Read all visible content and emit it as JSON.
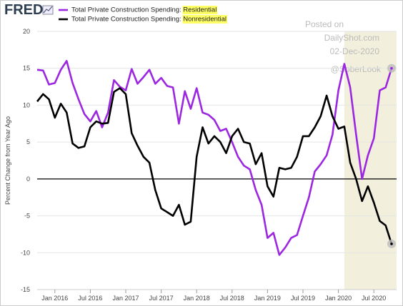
{
  "logo": "FRED",
  "watermark": [
    "Posted on",
    "DailyShot.com",
    "02-Dec-2020",
    "@SoberLook"
  ],
  "chart_data": {
    "type": "line",
    "y_label": "Percent Change from Year Ago",
    "x": [
      "2015-10",
      "2015-11",
      "2015-12",
      "2016-01",
      "2016-02",
      "2016-03",
      "2016-04",
      "2016-05",
      "2016-06",
      "2016-07",
      "2016-08",
      "2016-09",
      "2016-10",
      "2016-11",
      "2016-12",
      "2017-01",
      "2017-02",
      "2017-03",
      "2017-04",
      "2017-05",
      "2017-06",
      "2017-07",
      "2017-08",
      "2017-09",
      "2017-10",
      "2017-11",
      "2017-12",
      "2018-01",
      "2018-02",
      "2018-03",
      "2018-04",
      "2018-05",
      "2018-06",
      "2018-07",
      "2018-08",
      "2018-09",
      "2018-10",
      "2018-11",
      "2018-12",
      "2019-01",
      "2019-02",
      "2019-03",
      "2019-04",
      "2019-05",
      "2019-06",
      "2019-07",
      "2019-08",
      "2019-09",
      "2019-10",
      "2019-11",
      "2019-12",
      "2020-01",
      "2020-02",
      "2020-03",
      "2020-04",
      "2020-05",
      "2020-06",
      "2020-07",
      "2020-08",
      "2020-09",
      "2020-10"
    ],
    "series": [
      {
        "name": "Total Private Construction Spending: Residential",
        "color": "#9c27e0",
        "values": [
          14.8,
          14.7,
          12.8,
          13.0,
          14.8,
          16.0,
          13.0,
          10.8,
          8.8,
          7.8,
          9.2,
          7.0,
          9.0,
          13.4,
          12.5,
          12.0,
          14.9,
          12.9,
          13.8,
          14.8,
          12.9,
          13.7,
          12.6,
          12.4,
          7.5,
          11.9,
          9.5,
          12.3,
          9.0,
          8.7,
          8.0,
          6.5,
          6.8,
          5.0,
          3.0,
          1.8,
          1.3,
          -1.5,
          -3.5,
          -8.0,
          -7.3,
          -10.3,
          -9.3,
          -8.0,
          -7.6,
          -5.0,
          -2.5,
          1.0,
          2.0,
          3.2,
          6.0,
          12.0,
          15.6,
          12.4,
          6.0,
          0.0,
          3.2,
          5.5,
          12.0,
          12.4,
          15.0
        ]
      },
      {
        "name": "Total Private Construction Spending: Nonresidential",
        "color": "#000000",
        "values": [
          10.5,
          11.5,
          10.8,
          8.3,
          10.2,
          9.0,
          4.8,
          4.2,
          4.4,
          7.0,
          7.8,
          7.5,
          7.6,
          11.8,
          12.3,
          11.5,
          6.2,
          4.5,
          3.0,
          2.2,
          -1.5,
          -4.0,
          -4.5,
          -5.0,
          -3.5,
          -6.2,
          -5.8,
          3.0,
          7.0,
          4.8,
          5.8,
          5.0,
          3.5,
          5.8,
          6.8,
          5.0,
          4.8,
          2.0,
          3.5,
          -1.0,
          -2.4,
          1.5,
          1.3,
          1.5,
          3.0,
          5.8,
          5.8,
          7.0,
          8.5,
          11.3,
          8.5,
          6.8,
          7.1,
          2.2,
          0.0,
          -3.0,
          -1.0,
          -3.2,
          -5.7,
          -6.3,
          -8.8
        ]
      }
    ],
    "xlim": [
      "2015-10",
      "2020-10"
    ],
    "xticks": [
      {
        "value": "2016-01",
        "label": "Jan 2016"
      },
      {
        "value": "2016-07",
        "label": "Jul 2016"
      },
      {
        "value": "2017-01",
        "label": "Jan 2017"
      },
      {
        "value": "2017-07",
        "label": "Jul 2017"
      },
      {
        "value": "2018-01",
        "label": "Jan 2018"
      },
      {
        "value": "2018-07",
        "label": "Jul 2018"
      },
      {
        "value": "2019-01",
        "label": "Jan 2019"
      },
      {
        "value": "2019-07",
        "label": "Jul 2019"
      },
      {
        "value": "2020-01",
        "label": "Jan 2020"
      },
      {
        "value": "2020-07",
        "label": "Jul 2020"
      }
    ],
    "ylim": [
      -15,
      20
    ],
    "yticks": [
      -15,
      -10,
      -5,
      0,
      5,
      10,
      15,
      20
    ],
    "grid": true,
    "shading": {
      "start": "2020-02",
      "color": "#f2f0dc"
    }
  }
}
